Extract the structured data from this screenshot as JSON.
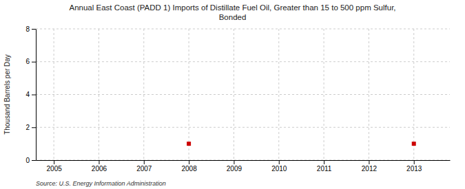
{
  "chart_data": {
    "type": "scatter",
    "title": "Annual East Coast (PADD 1) Imports of Distillate Fuel Oil, Greater than 15 to 500 ppm Sulfur,\nBonded",
    "ylabel": "Thousand Barrels per Day",
    "source": "Source: U.S. Energy Information Administration",
    "x": [
      2008,
      2013
    ],
    "values": [
      1.0,
      1.0
    ],
    "color": "#CC0000",
    "marker": "square",
    "xlim": [
      2004.6,
      2013.8
    ],
    "ylim": [
      0,
      8
    ],
    "xticks": [
      2005,
      2006,
      2007,
      2008,
      2009,
      2010,
      2011,
      2012,
      2013
    ],
    "yticks": [
      0,
      2,
      4,
      6,
      8
    ],
    "grid": true
  }
}
